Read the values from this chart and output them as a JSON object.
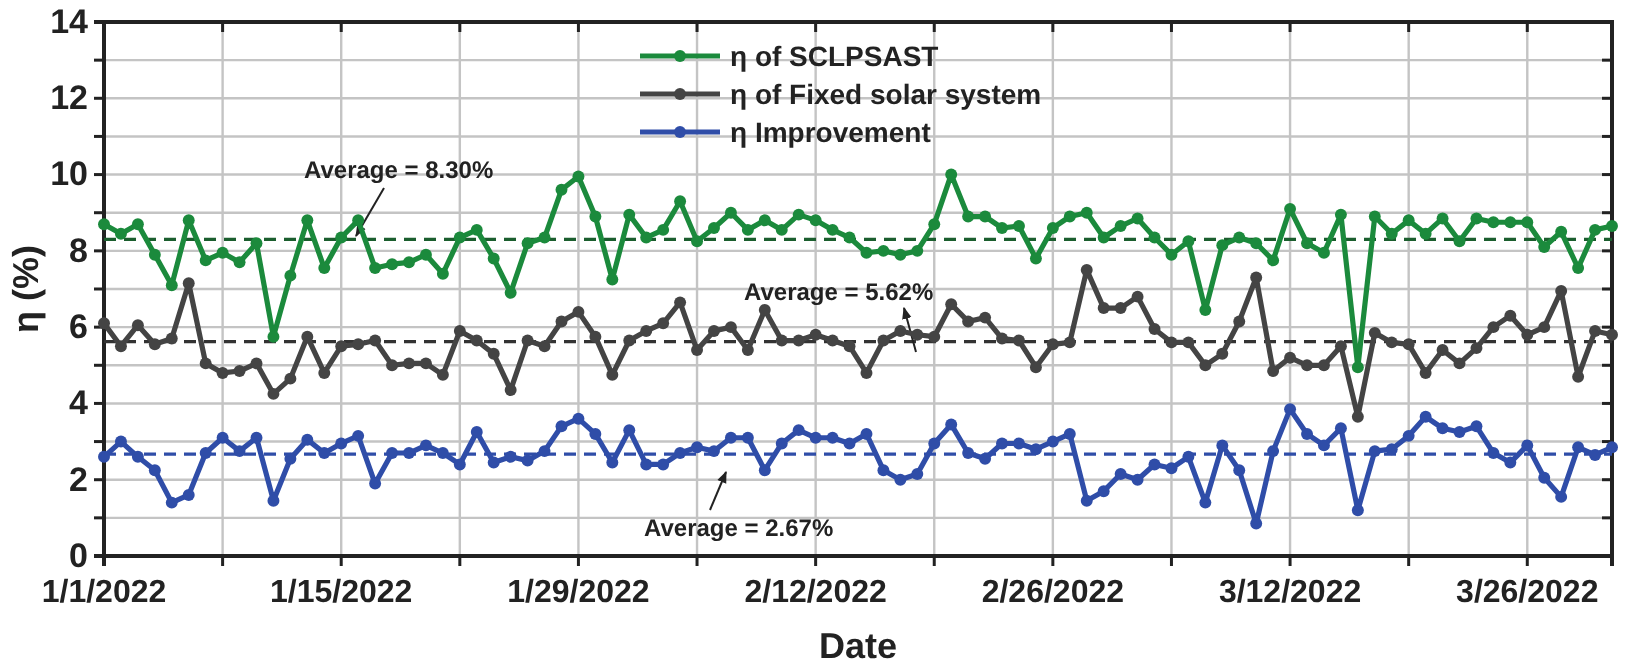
{
  "chart_data": {
    "type": "line",
    "xlabel": "Date",
    "ylabel": "η (%)",
    "x": [
      "2022-01-01",
      "2022-01-02",
      "2022-01-03",
      "2022-01-04",
      "2022-01-05",
      "2022-01-06",
      "2022-01-07",
      "2022-01-08",
      "2022-01-09",
      "2022-01-10",
      "2022-01-11",
      "2022-01-12",
      "2022-01-13",
      "2022-01-14",
      "2022-01-15",
      "2022-01-16",
      "2022-01-17",
      "2022-01-18",
      "2022-01-19",
      "2022-01-20",
      "2022-01-21",
      "2022-01-22",
      "2022-01-23",
      "2022-01-24",
      "2022-01-25",
      "2022-01-26",
      "2022-01-27",
      "2022-01-28",
      "2022-01-29",
      "2022-01-30",
      "2022-01-31",
      "2022-02-01",
      "2022-02-02",
      "2022-02-03",
      "2022-02-04",
      "2022-02-05",
      "2022-02-06",
      "2022-02-07",
      "2022-02-08",
      "2022-02-09",
      "2022-02-10",
      "2022-02-11",
      "2022-02-12",
      "2022-02-13",
      "2022-02-14",
      "2022-02-15",
      "2022-02-16",
      "2022-02-17",
      "2022-02-18",
      "2022-02-19",
      "2022-02-20",
      "2022-02-21",
      "2022-02-22",
      "2022-02-23",
      "2022-02-24",
      "2022-02-25",
      "2022-02-26",
      "2022-02-27",
      "2022-02-28",
      "2022-03-01",
      "2022-03-02",
      "2022-03-03",
      "2022-03-04",
      "2022-03-05",
      "2022-03-06",
      "2022-03-07",
      "2022-03-08",
      "2022-03-09",
      "2022-03-10",
      "2022-03-11",
      "2022-03-12",
      "2022-03-13",
      "2022-03-14",
      "2022-03-15",
      "2022-03-16",
      "2022-03-17",
      "2022-03-18",
      "2022-03-19",
      "2022-03-20",
      "2022-03-21",
      "2022-03-22",
      "2022-03-23",
      "2022-03-24",
      "2022-03-25",
      "2022-03-26",
      "2022-03-27",
      "2022-03-28",
      "2022-03-29",
      "2022-03-30",
      "2022-03-31"
    ],
    "series": [
      {
        "name": "η of SCLPSAST",
        "color": "#1b8a3c",
        "values": [
          8.7,
          8.45,
          8.7,
          7.9,
          7.1,
          8.8,
          7.75,
          7.95,
          7.7,
          8.2,
          5.75,
          7.35,
          8.8,
          7.55,
          8.35,
          8.8,
          7.55,
          7.65,
          7.7,
          7.9,
          7.4,
          8.35,
          8.55,
          7.8,
          6.9,
          8.2,
          8.35,
          9.6,
          9.95,
          8.9,
          7.25,
          8.95,
          8.35,
          8.55,
          9.3,
          8.25,
          8.6,
          9.0,
          8.55,
          8.8,
          8.55,
          8.95,
          8.8,
          8.55,
          8.35,
          7.95,
          8.0,
          7.9,
          8.0,
          8.7,
          10.0,
          8.9,
          8.9,
          8.6,
          8.65,
          7.8,
          8.6,
          8.9,
          9.0,
          8.35,
          8.65,
          8.85,
          8.35,
          7.9,
          8.25,
          6.45,
          8.15,
          8.35,
          8.2,
          7.75,
          9.1,
          8.2,
          7.95,
          8.95,
          4.95,
          8.9,
          8.45,
          8.8,
          8.45,
          8.85,
          8.25,
          8.85,
          8.75,
          8.75,
          8.75,
          8.1,
          8.5,
          7.55,
          8.55,
          8.65
        ]
      },
      {
        "name": "η of Fixed solar system",
        "color": "#444444",
        "values": [
          6.1,
          5.5,
          6.05,
          5.55,
          5.7,
          7.15,
          5.05,
          4.8,
          4.85,
          5.05,
          4.25,
          4.65,
          5.75,
          4.8,
          5.5,
          5.55,
          5.65,
          5.0,
          5.05,
          5.05,
          4.75,
          5.9,
          5.65,
          5.3,
          4.35,
          5.65,
          5.5,
          6.15,
          6.4,
          5.75,
          4.75,
          5.65,
          5.9,
          6.1,
          6.65,
          5.4,
          5.9,
          6.0,
          5.4,
          6.45,
          5.65,
          5.65,
          5.8,
          5.65,
          5.5,
          4.8,
          5.65,
          5.9,
          5.8,
          5.75,
          6.6,
          6.15,
          6.25,
          5.7,
          5.65,
          4.95,
          5.55,
          5.6,
          7.5,
          6.5,
          6.5,
          6.8,
          5.95,
          5.6,
          5.6,
          5.0,
          5.3,
          6.15,
          7.3,
          4.85,
          5.2,
          5.0,
          5.0,
          5.5,
          3.65,
          5.85,
          5.6,
          5.55,
          4.8,
          5.4,
          5.05,
          5.45,
          6.0,
          6.3,
          5.8,
          6.0,
          6.95,
          4.7,
          5.9,
          5.8
        ]
      },
      {
        "name": "η Improvement",
        "color": "#2f4da8",
        "values": [
          2.6,
          3.0,
          2.6,
          2.25,
          1.4,
          1.6,
          2.7,
          3.1,
          2.75,
          3.1,
          1.45,
          2.55,
          3.05,
          2.7,
          2.95,
          3.15,
          1.9,
          2.7,
          2.7,
          2.9,
          2.7,
          2.4,
          3.25,
          2.45,
          2.6,
          2.5,
          2.75,
          3.4,
          3.6,
          3.2,
          2.45,
          3.3,
          2.4,
          2.4,
          2.7,
          2.85,
          2.75,
          3.1,
          3.1,
          2.25,
          2.95,
          3.3,
          3.1,
          3.1,
          2.95,
          3.2,
          2.25,
          2.0,
          2.15,
          2.95,
          3.45,
          2.7,
          2.55,
          2.95,
          2.95,
          2.8,
          3.0,
          3.2,
          1.45,
          1.7,
          2.15,
          2.0,
          2.4,
          2.3,
          2.6,
          1.4,
          2.9,
          2.25,
          0.85,
          2.75,
          3.85,
          3.2,
          2.9,
          3.35,
          1.2,
          2.75,
          2.8,
          3.15,
          3.65,
          3.35,
          3.25,
          3.4,
          2.7,
          2.45,
          2.9,
          2.05,
          1.55,
          2.85,
          2.65,
          2.85
        ]
      }
    ],
    "ref_lines": [
      {
        "axis": "y",
        "value": 8.3,
        "label": "Average = 8.30%",
        "color": "#1b5e2e",
        "line_style": "dashed"
      },
      {
        "axis": "y",
        "value": 5.62,
        "label": "Average = 5.62%",
        "color": "#333333",
        "line_style": "dashed"
      },
      {
        "axis": "y",
        "value": 2.67,
        "label": "Average = 2.67%",
        "color": "#2f4da8",
        "line_style": "dashed"
      }
    ],
    "xlim": [
      "2022-01-01",
      "2022-03-31"
    ],
    "xticks": [
      {
        "value": "2022-01-01",
        "label": "1/1/2022"
      },
      {
        "value": "2022-01-08",
        "label": null
      },
      {
        "value": "2022-01-15",
        "label": "1/15/2022"
      },
      {
        "value": "2022-01-22",
        "label": null
      },
      {
        "value": "2022-01-29",
        "label": "1/29/2022"
      },
      {
        "value": "2022-02-05",
        "label": null
      },
      {
        "value": "2022-02-12",
        "label": "2/12/2022"
      },
      {
        "value": "2022-02-19",
        "label": null
      },
      {
        "value": "2022-02-26",
        "label": "2/26/2022"
      },
      {
        "value": "2022-03-05",
        "label": null
      },
      {
        "value": "2022-03-12",
        "label": "3/12/2022"
      },
      {
        "value": "2022-03-19",
        "label": null
      },
      {
        "value": "2022-03-26",
        "label": "3/26/2022"
      }
    ],
    "ylim": [
      0,
      14
    ],
    "yticks": [
      0,
      {
        "value": 1,
        "label": null
      },
      2,
      {
        "value": 3,
        "label": null
      },
      4,
      {
        "value": 5,
        "label": null
      },
      6,
      {
        "value": 7,
        "label": null
      },
      8,
      {
        "value": 9,
        "label": null
      },
      10,
      {
        "value": 11,
        "label": null
      },
      12,
      {
        "value": 13,
        "label": null
      },
      14
    ],
    "grid": true,
    "legend": "top",
    "marker": "circle",
    "line_style": "solid"
  }
}
